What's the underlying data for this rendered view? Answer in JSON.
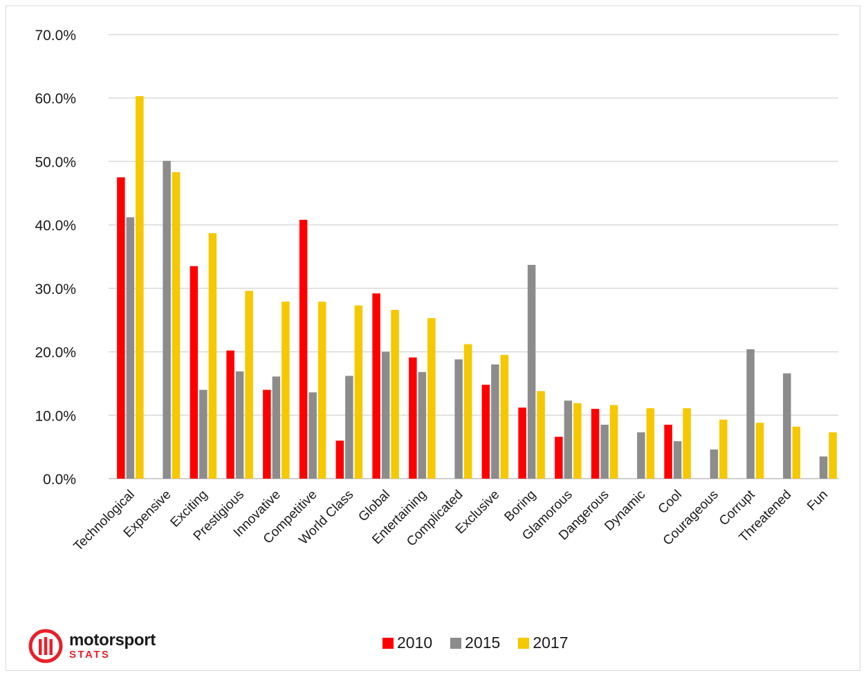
{
  "chart_data": {
    "type": "bar",
    "title": "",
    "xlabel": "",
    "ylabel": "",
    "ylim": [
      0,
      70
    ],
    "yticks": [
      "0.0%",
      "10.0%",
      "20.0%",
      "30.0%",
      "40.0%",
      "50.0%",
      "60.0%",
      "70.0%"
    ],
    "grid": true,
    "legend_position": "bottom",
    "categories": [
      "Technological",
      "Expensive",
      "Exciting",
      "Prestigious",
      "Innovative",
      "Competitive",
      "World Class",
      "Global",
      "Entertaining",
      "Complicated",
      "Exclusive",
      "Boring",
      "Glamorous",
      "Dangerous",
      "Dynamic",
      "Cool",
      "Courageous",
      "Corrupt",
      "Threatened",
      "Fun"
    ],
    "series": [
      {
        "name": "2010",
        "color": "#ff0000",
        "values": [
          47.5,
          null,
          33.5,
          20.2,
          14.0,
          40.8,
          6.0,
          29.2,
          19.1,
          null,
          14.8,
          11.2,
          6.6,
          11.0,
          null,
          8.5,
          null,
          null,
          null,
          null
        ]
      },
      {
        "name": "2015",
        "color": "#8c8c8c",
        "values": [
          41.2,
          50.1,
          14.0,
          16.9,
          16.1,
          13.6,
          16.2,
          20.0,
          16.8,
          18.8,
          18.0,
          33.7,
          12.3,
          8.5,
          7.3,
          5.9,
          4.6,
          20.4,
          16.6,
          3.5
        ]
      },
      {
        "name": "2017",
        "color": "#f5c800",
        "values": [
          60.3,
          48.3,
          38.7,
          29.6,
          27.9,
          27.9,
          27.3,
          26.6,
          25.3,
          21.2,
          19.5,
          13.8,
          11.9,
          11.6,
          11.1,
          11.1,
          9.3,
          8.8,
          8.2,
          7.3
        ]
      }
    ]
  },
  "brand": {
    "name": "motorsport",
    "sub": "STATS",
    "color": "#e8202a"
  }
}
